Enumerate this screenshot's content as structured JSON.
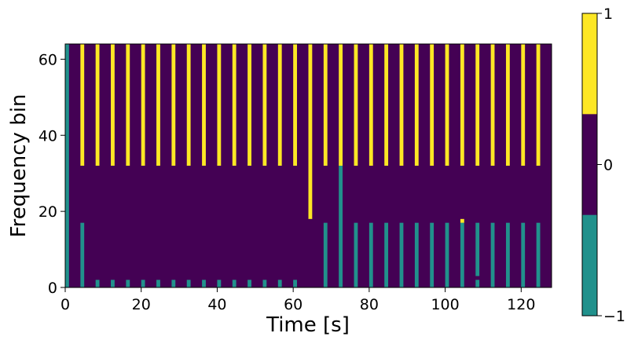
{
  "chart_data": {
    "type": "heatmap",
    "title": "",
    "xlabel": "Time [s]",
    "ylabel": "Frequency bin",
    "xlim": [
      0,
      128
    ],
    "ylim": [
      0,
      64
    ],
    "x_ticks": [
      0,
      20,
      40,
      60,
      80,
      100,
      120
    ],
    "y_ticks": [
      0,
      20,
      40,
      60
    ],
    "grid": false,
    "colorbar": {
      "ticks": [
        -1,
        0,
        1
      ],
      "tick_labels": [
        "−1",
        "0",
        "1"
      ],
      "levels": [
        {
          "value": -1,
          "color": "#21918c"
        },
        {
          "value": 0,
          "color": "#440154"
        },
        {
          "value": 1,
          "color": "#fde725"
        }
      ]
    },
    "background_value": 0,
    "cells": [
      {
        "t0": 0,
        "t1": 1,
        "f0": 0,
        "f1": 64,
        "value": -1
      },
      {
        "t0": 4,
        "t1": 5,
        "f0": 32,
        "f1": 64,
        "value": 1
      },
      {
        "t0": 8,
        "t1": 9,
        "f0": 32,
        "f1": 64,
        "value": 1
      },
      {
        "t0": 12,
        "t1": 13,
        "f0": 32,
        "f1": 64,
        "value": 1
      },
      {
        "t0": 16,
        "t1": 17,
        "f0": 32,
        "f1": 64,
        "value": 1
      },
      {
        "t0": 20,
        "t1": 21,
        "f0": 32,
        "f1": 64,
        "value": 1
      },
      {
        "t0": 24,
        "t1": 25,
        "f0": 32,
        "f1": 64,
        "value": 1
      },
      {
        "t0": 28,
        "t1": 29,
        "f0": 32,
        "f1": 64,
        "value": 1
      },
      {
        "t0": 32,
        "t1": 33,
        "f0": 32,
        "f1": 64,
        "value": 1
      },
      {
        "t0": 36,
        "t1": 37,
        "f0": 32,
        "f1": 64,
        "value": 1
      },
      {
        "t0": 40,
        "t1": 41,
        "f0": 32,
        "f1": 64,
        "value": 1
      },
      {
        "t0": 44,
        "t1": 45,
        "f0": 32,
        "f1": 64,
        "value": 1
      },
      {
        "t0": 48,
        "t1": 49,
        "f0": 32,
        "f1": 64,
        "value": 1
      },
      {
        "t0": 52,
        "t1": 53,
        "f0": 32,
        "f1": 64,
        "value": 1
      },
      {
        "t0": 56,
        "t1": 57,
        "f0": 32,
        "f1": 64,
        "value": 1
      },
      {
        "t0": 60,
        "t1": 61,
        "f0": 32,
        "f1": 64,
        "value": 1
      },
      {
        "t0": 64,
        "t1": 65,
        "f0": 18,
        "f1": 64,
        "value": 1
      },
      {
        "t0": 68,
        "t1": 69,
        "f0": 32,
        "f1": 64,
        "value": 1
      },
      {
        "t0": 72,
        "t1": 73,
        "f0": 32,
        "f1": 64,
        "value": 1
      },
      {
        "t0": 76,
        "t1": 77,
        "f0": 32,
        "f1": 64,
        "value": 1
      },
      {
        "t0": 80,
        "t1": 81,
        "f0": 32,
        "f1": 64,
        "value": 1
      },
      {
        "t0": 84,
        "t1": 85,
        "f0": 32,
        "f1": 64,
        "value": 1
      },
      {
        "t0": 88,
        "t1": 89,
        "f0": 32,
        "f1": 64,
        "value": 1
      },
      {
        "t0": 92,
        "t1": 93,
        "f0": 32,
        "f1": 64,
        "value": 1
      },
      {
        "t0": 96,
        "t1": 97,
        "f0": 32,
        "f1": 64,
        "value": 1
      },
      {
        "t0": 100,
        "t1": 101,
        "f0": 32,
        "f1": 64,
        "value": 1
      },
      {
        "t0": 104,
        "t1": 105,
        "f0": 32,
        "f1": 64,
        "value": 1
      },
      {
        "t0": 108,
        "t1": 109,
        "f0": 32,
        "f1": 64,
        "value": 1
      },
      {
        "t0": 112,
        "t1": 113,
        "f0": 32,
        "f1": 64,
        "value": 1
      },
      {
        "t0": 116,
        "t1": 117,
        "f0": 32,
        "f1": 64,
        "value": 1
      },
      {
        "t0": 120,
        "t1": 121,
        "f0": 32,
        "f1": 64,
        "value": 1
      },
      {
        "t0": 124,
        "t1": 125,
        "f0": 32,
        "f1": 64,
        "value": 1
      },
      {
        "t0": 4,
        "t1": 5,
        "f0": 0,
        "f1": 17,
        "value": -1
      },
      {
        "t0": 8,
        "t1": 9,
        "f0": 0,
        "f1": 2,
        "value": -1
      },
      {
        "t0": 12,
        "t1": 13,
        "f0": 0,
        "f1": 2,
        "value": -1
      },
      {
        "t0": 16,
        "t1": 17,
        "f0": 0,
        "f1": 2,
        "value": -1
      },
      {
        "t0": 20,
        "t1": 21,
        "f0": 0,
        "f1": 2,
        "value": -1
      },
      {
        "t0": 24,
        "t1": 25,
        "f0": 0,
        "f1": 2,
        "value": -1
      },
      {
        "t0": 28,
        "t1": 29,
        "f0": 0,
        "f1": 2,
        "value": -1
      },
      {
        "t0": 32,
        "t1": 33,
        "f0": 0,
        "f1": 2,
        "value": -1
      },
      {
        "t0": 36,
        "t1": 37,
        "f0": 0,
        "f1": 2,
        "value": -1
      },
      {
        "t0": 40,
        "t1": 41,
        "f0": 0,
        "f1": 2,
        "value": -1
      },
      {
        "t0": 44,
        "t1": 45,
        "f0": 0,
        "f1": 2,
        "value": -1
      },
      {
        "t0": 48,
        "t1": 49,
        "f0": 0,
        "f1": 2,
        "value": -1
      },
      {
        "t0": 52,
        "t1": 53,
        "f0": 0,
        "f1": 2,
        "value": -1
      },
      {
        "t0": 56,
        "t1": 57,
        "f0": 0,
        "f1": 2,
        "value": -1
      },
      {
        "t0": 60,
        "t1": 61,
        "f0": 0,
        "f1": 2,
        "value": -1
      },
      {
        "t0": 68,
        "t1": 69,
        "f0": 0,
        "f1": 17,
        "value": -1
      },
      {
        "t0": 72,
        "t1": 73,
        "f0": 0,
        "f1": 32,
        "value": -1
      },
      {
        "t0": 76,
        "t1": 77,
        "f0": 0,
        "f1": 17,
        "value": -1
      },
      {
        "t0": 80,
        "t1": 81,
        "f0": 0,
        "f1": 17,
        "value": -1
      },
      {
        "t0": 84,
        "t1": 85,
        "f0": 0,
        "f1": 17,
        "value": -1
      },
      {
        "t0": 88,
        "t1": 89,
        "f0": 0,
        "f1": 17,
        "value": -1
      },
      {
        "t0": 92,
        "t1": 93,
        "f0": 0,
        "f1": 17,
        "value": -1
      },
      {
        "t0": 96,
        "t1": 97,
        "f0": 0,
        "f1": 17,
        "value": -1
      },
      {
        "t0": 100,
        "t1": 101,
        "f0": 0,
        "f1": 17,
        "value": -1
      },
      {
        "t0": 104,
        "t1": 105,
        "f0": 0,
        "f1": 17,
        "value": -1
      },
      {
        "t0": 104,
        "t1": 105,
        "f0": 17,
        "f1": 18,
        "value": 1
      },
      {
        "t0": 108,
        "t1": 109,
        "f0": 3,
        "f1": 17,
        "value": -1
      },
      {
        "t0": 108,
        "t1": 109,
        "f0": 0,
        "f1": 2,
        "value": -1
      },
      {
        "t0": 112,
        "t1": 113,
        "f0": 0,
        "f1": 17,
        "value": -1
      },
      {
        "t0": 116,
        "t1": 117,
        "f0": 0,
        "f1": 17,
        "value": -1
      },
      {
        "t0": 120,
        "t1": 121,
        "f0": 0,
        "f1": 17,
        "value": -1
      },
      {
        "t0": 124,
        "t1": 125,
        "f0": 0,
        "f1": 17,
        "value": -1
      }
    ]
  }
}
